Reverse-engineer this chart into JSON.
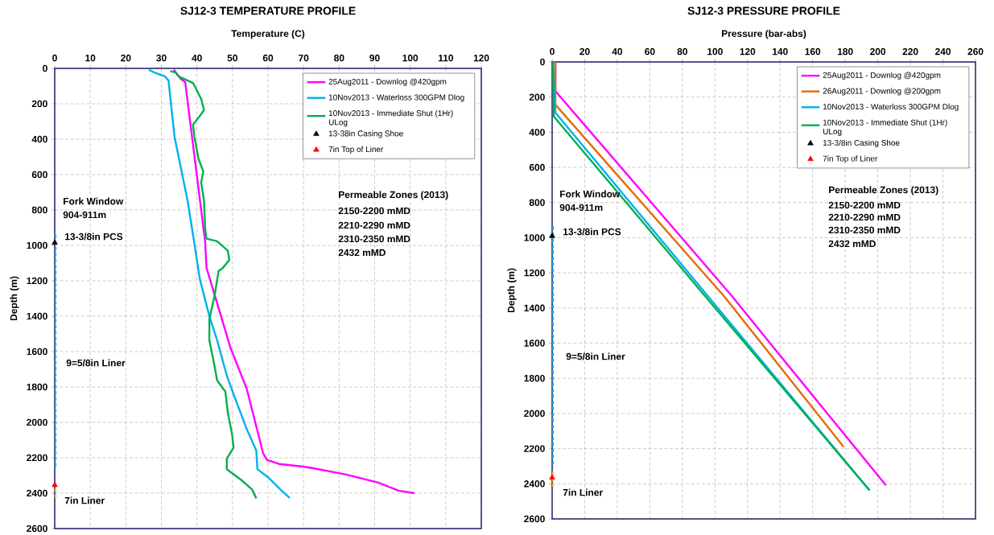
{
  "chart_data": [
    {
      "type": "line",
      "title": "SJ12-3 TEMPERATURE PROFILE",
      "xlabel": "Temperature (C)",
      "ylabel": "Depth (m)",
      "xlim": [
        0,
        120
      ],
      "xticks": [
        0,
        10,
        20,
        30,
        40,
        50,
        60,
        70,
        80,
        90,
        100,
        110,
        120
      ],
      "ylim": [
        2600,
        0
      ],
      "yticks": [
        0,
        200,
        400,
        600,
        800,
        1000,
        1200,
        1400,
        1600,
        1800,
        2000,
        2200,
        2400,
        2600
      ],
      "grid": true,
      "legend": "top right",
      "series": [
        {
          "type": "line",
          "line_style": "dotted",
          "color": "#00b0f0",
          "x": [
            0,
            0
          ],
          "values": [
            940,
            2264
          ]
        },
        {
          "type": "line",
          "line_style": "dotted",
          "color": "#ffc000",
          "x": [
            0,
            0
          ],
          "values": [
            2340,
            2440
          ]
        },
        {
          "name": "25Aug2011 - Downlog @420gpm",
          "line_style": "solid",
          "color": "#ff00ff",
          "x": [
            33.5,
            35.5,
            36.7,
            42.3,
            42.7,
            49.5,
            54,
            58.6,
            59.7,
            63.1,
            69.9,
            73,
            82,
            91,
            96.7,
            101.2
          ],
          "values": [
            8,
            60,
            77,
            977,
            1127,
            1582,
            1809,
            2173,
            2212,
            2235,
            2250,
            2260,
            2295,
            2340,
            2386,
            2400
          ]
        },
        {
          "name": "10Nov2013 - Waterloss 300GPM Dlog",
          "line_style": "solid",
          "color": "#00b0f0",
          "x": [
            26.5,
            28,
            31,
            32,
            33.7,
            37.4,
            39.3,
            40.8,
            43.5,
            45.7,
            48.4,
            50.3,
            54,
            56.7,
            57,
            60,
            63.8,
            66.1
          ],
          "values": [
            8,
            23,
            45,
            68,
            386,
            750,
            991,
            1189,
            1400,
            1537,
            1735,
            1841,
            2037,
            2159,
            2264,
            2310,
            2386,
            2427
          ]
        },
        {
          "name": "10Nov2013 - Immediate Shut (1Hr) ULog",
          "line_style": "solid",
          "color": "#00b050",
          "x": [
            32.5,
            34,
            34.8,
            38.9,
            41.2,
            42,
            40.4,
            38.9,
            39.3,
            40.4,
            41.8,
            41.2,
            42,
            42.3,
            42.7,
            45.7,
            48.7,
            49.1,
            47.2,
            46.1,
            45,
            43.5,
            43.5,
            44.6,
            45.7,
            48,
            48.7,
            49.9,
            50.3,
            48.4,
            48.4,
            52.5,
            55.5,
            56.7
          ],
          "values": [
            15,
            23,
            45,
            82,
            173,
            235,
            280,
            318,
            386,
            508,
            583,
            644,
            750,
            901,
            962,
            977,
            1030,
            1083,
            1129,
            1144,
            1280,
            1417,
            1537,
            1644,
            1764,
            1826,
            1947,
            2068,
            2144,
            2205,
            2265,
            2326,
            2379,
            2429
          ]
        },
        {
          "name": "13-38in Casing Shoe",
          "type": "scatter",
          "marker": "triangle",
          "color": "#000000",
          "x": [
            0
          ],
          "values": [
            985
          ]
        },
        {
          "name": "7in Top of Liner",
          "type": "scatter",
          "marker": "triangle",
          "color": "#ff0000",
          "x": [
            0
          ],
          "values": [
            2355
          ]
        }
      ],
      "annotations": [
        "Fork Window",
        "904-911m",
        "13-3/8in PCS",
        "9=5/8in Liner",
        "7in Liner",
        "Permeable Zones (2013)",
        "2150-2200 mMD",
        "2210-2290 mMD",
        "2310-2350 mMD",
        "2432 mMD"
      ]
    },
    {
      "type": "line",
      "title": "SJ12-3 PRESSURE PROFILE",
      "xlabel": "Pressure (bar-abs)",
      "ylabel": "Depth (m)",
      "xlim": [
        0,
        260
      ],
      "xticks": [
        0,
        20,
        40,
        60,
        80,
        100,
        120,
        140,
        160,
        180,
        200,
        220,
        240,
        260
      ],
      "ylim": [
        2600,
        0
      ],
      "yticks": [
        0,
        200,
        400,
        600,
        800,
        1000,
        1200,
        1400,
        1600,
        1800,
        2000,
        2200,
        2400,
        2600
      ],
      "grid": true,
      "legend": "top right",
      "series": [
        {
          "type": "line",
          "line_style": "dotted",
          "color": "#00b0f0",
          "x": [
            0,
            0
          ],
          "values": [
            936,
            2310
          ]
        },
        {
          "type": "line",
          "line_style": "dotted",
          "color": "#ffc000",
          "x": [
            0,
            0
          ],
          "values": [
            2331,
            2430
          ]
        },
        {
          "name": "25Aug2011 - Downlog @420gpm",
          "line_style": "solid",
          "color": "#ff00ff",
          "x": [
            2,
            2,
            110.5,
            135.2,
            205
          ],
          "values": [
            0,
            166,
            1333,
            1616,
            2409
          ]
        },
        {
          "name": "26Aug2011 - Downlog @200gpm",
          "line_style": "solid",
          "color": "#e46c0a",
          "x": [
            2,
            2,
            105.6,
            179
          ],
          "values": [
            0,
            243,
            1333,
            2190
          ]
        },
        {
          "name": "10Nov2013 - Waterloss 300GPM Dlog",
          "line_style": "solid",
          "color": "#00b0f0",
          "x": [
            0.5,
            2,
            95.7,
            194.4
          ],
          "values": [
            0,
            288,
            1333,
            2432
          ]
        },
        {
          "name": "10Nov2013 - Immediate Shut (1Hr) ULog",
          "line_style": "solid",
          "color": "#00b050",
          "x": [
            0.5,
            1.1,
            94,
            195
          ],
          "values": [
            0,
            311,
            1333,
            2438
          ]
        },
        {
          "name": "13-3/8in Casing Shoe",
          "type": "scatter",
          "marker": "triangle",
          "color": "#000000",
          "x": [
            0
          ],
          "values": [
            990
          ]
        },
        {
          "name": "7in Top of Liner",
          "type": "scatter",
          "marker": "triangle",
          "color": "#ff0000",
          "x": [
            0
          ],
          "values": [
            2365
          ]
        }
      ],
      "annotations": [
        "Fork Window",
        "904-911m",
        "13-3/8in PCS",
        "9=5/8in Liner",
        "7in Liner",
        "Permeable Zones (2013)",
        "2150-2200 mMD",
        "2210-2290 mMD",
        "2310-2350 mMD",
        "2432 mMD"
      ]
    }
  ]
}
